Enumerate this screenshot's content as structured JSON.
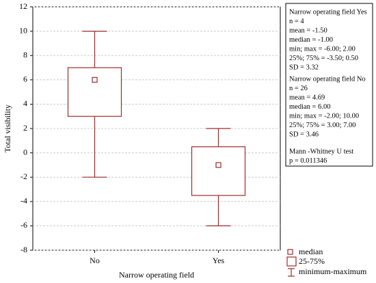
{
  "chart_data": {
    "type": "box",
    "xlabel": "Narrow operating field",
    "ylabel": "Total visibility",
    "categories": [
      "No",
      "Yes"
    ],
    "boxes": [
      {
        "min": -2,
        "q1": 3,
        "median": 6,
        "q3": 7,
        "max": 10
      },
      {
        "min": -6,
        "q1": -3.5,
        "median": -1,
        "q3": 0.5,
        "max": 2
      }
    ],
    "color": "#9b2a2a",
    "ylim": [
      -8,
      12
    ],
    "yticks": [
      -8,
      -6,
      -4,
      -2,
      0,
      2,
      4,
      6,
      8,
      10,
      12
    ],
    "grid": true,
    "legend": [
      "median",
      "25-75%",
      "minimum-maximum"
    ],
    "stats_box": [
      [
        "Narrow operating field Yes",
        "n = 4",
        "mean = -1.50",
        "median = -1.00",
        "min; max = -6.00; 2.00",
        "25%; 75% = -3.50; 0.50",
        "SD = 3.32"
      ],
      [
        "Narrow operating field No",
        "n = 26",
        "mean = 4.69",
        "median = 6.00",
        "min; max = -2.00; 10.00",
        "25%; 75% = 3.00; 7.00",
        "SD = 3.46"
      ],
      [
        "Mann -Whitney U test",
        "p = 0.011346"
      ]
    ]
  }
}
